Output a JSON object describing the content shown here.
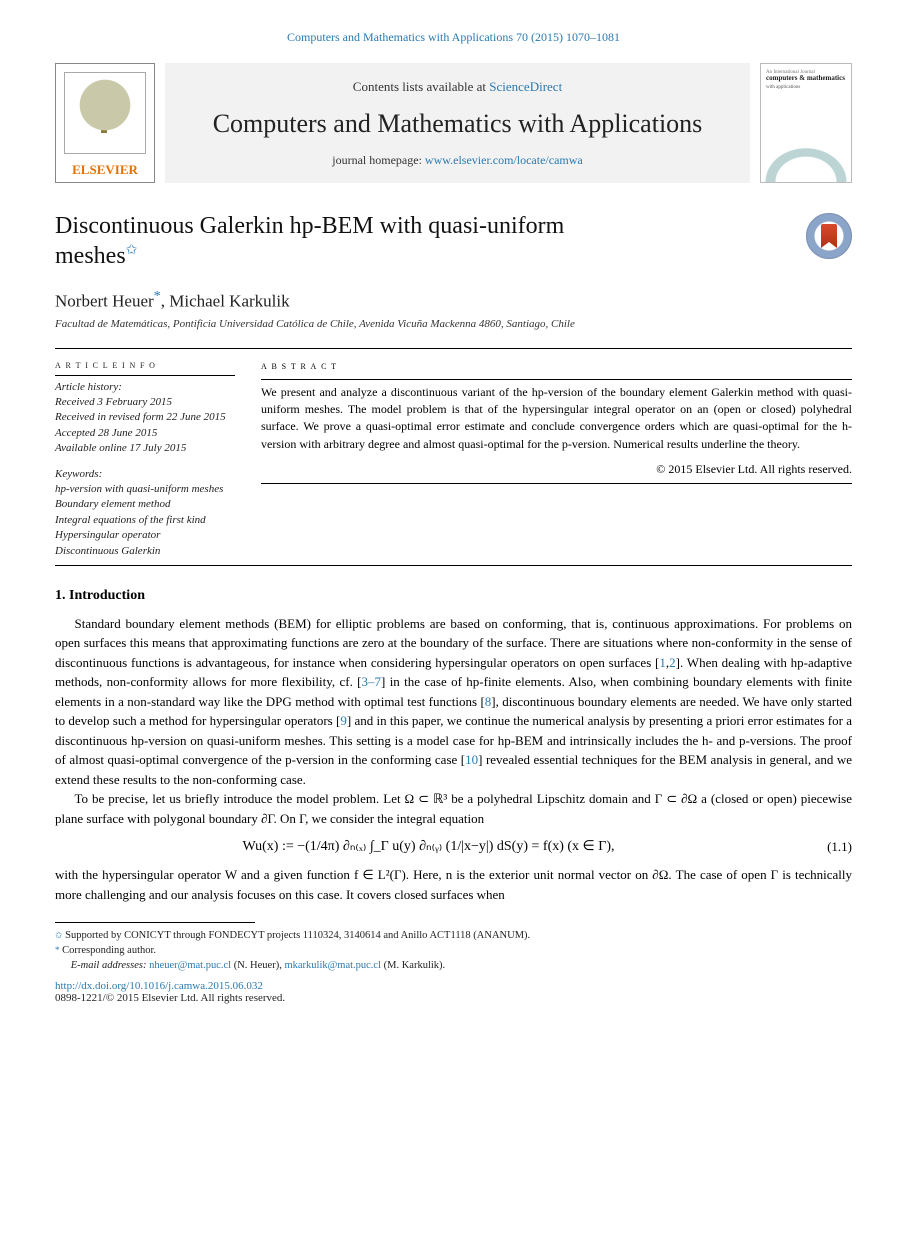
{
  "citation_header": "Computers and Mathematics with Applications 70 (2015) 1070–1081",
  "header": {
    "elsevier_label": "ELSEVIER",
    "contents_prefix": "Contents lists available at ",
    "sciencedirect": "ScienceDirect",
    "journal_name": "Computers and Mathematics with Applications",
    "homepage_prefix": "journal homepage: ",
    "homepage_url": "www.elsevier.com/locate/camwa",
    "cover_t1": "computers & mathematics",
    "cover_t2": "with applications"
  },
  "title_line1": "Discontinuous Galerkin hp-BEM with quasi-uniform",
  "title_line2": "meshes",
  "title_star": "✩",
  "authors": "Norbert Heuer",
  "author2_pre": ", Michael Karkulik",
  "corr_mark": "*",
  "affiliation": "Facultad de Matemáticas, Pontificia Universidad Católica de Chile, Avenida Vicuña Mackenna 4860, Santiago, Chile",
  "article_info": {
    "head": "a r t i c l e   i n f o",
    "history_head": "Article history:",
    "h1": "Received 3 February 2015",
    "h2": "Received in revised form 22 June 2015",
    "h3": "Accepted 28 June 2015",
    "h4": "Available online 17 July 2015",
    "kw_head": "Keywords:",
    "k1": "hp-version with quasi-uniform meshes",
    "k2": "Boundary element method",
    "k3": "Integral equations of the first kind",
    "k4": "Hypersingular operator",
    "k5": "Discontinuous Galerkin"
  },
  "abstract": {
    "head": "a b s t r a c t",
    "text": "We present and analyze a discontinuous variant of the hp-version of the boundary element Galerkin method with quasi-uniform meshes. The model problem is that of the hypersingular integral operator on an (open or closed) polyhedral surface. We prove a quasi-optimal error estimate and conclude convergence orders which are quasi-optimal for the h-version with arbitrary degree and almost quasi-optimal for the p-version. Numerical results underline the theory.",
    "copyright": "© 2015 Elsevier Ltd. All rights reserved."
  },
  "section1_head": "1. Introduction",
  "intro": {
    "p1_a": "Standard boundary element methods (BEM) for elliptic problems are based on conforming, that is, continuous approximations. For problems on open surfaces this means that approximating functions are zero at the boundary of the surface. There are situations where non-conformity in the sense of discontinuous functions is advantageous, for instance when considering hypersingular operators on open surfaces [",
    "c1": "1",
    "p1_b": ",",
    "c2": "2",
    "p1_c": "]. When dealing with hp-adaptive methods, non-conformity allows for more flexibility, cf. [",
    "c3": "3–7",
    "p1_d": "] in the case of hp-finite elements. Also, when combining boundary elements with finite elements in a non-standard way like the DPG method with optimal test functions [",
    "c4": "8",
    "p1_e": "], discontinuous boundary elements are needed. We have only started to develop such a method for hypersingular operators [",
    "c5": "9",
    "p1_f": "] and in this paper, we continue the numerical analysis by presenting a priori error estimates for a discontinuous hp-version on quasi-uniform meshes. This setting is a model case for hp-BEM and intrinsically includes the h- and p-versions. The proof of almost quasi-optimal convergence of the p-version in the conforming case [",
    "c6": "10",
    "p1_g": "] revealed essential techniques for the BEM analysis in general, and we extend these results to the non-conforming case.",
    "p2": "To be precise, let us briefly introduce the model problem. Let Ω ⊂ ℝ³ be a polyhedral Lipschitz domain and Γ ⊂ ∂Ω a (closed or open) piecewise plane surface with polygonal boundary ∂Γ. On Γ, we consider the integral equation",
    "eq1": "Wu(x) := −(1/4π) ∂ₙ₍ₓ₎ ∫_Γ u(y) ∂ₙ₍ᵧ₎ (1/|x−y|) dS(y) = f(x)    (x ∈ Γ),",
    "eqnum1": "(1.1)",
    "p3": "with the hypersingular operator W and a given function f ∈ L²(Γ). Here, n is the exterior unit normal vector on ∂Ω. The case of open Γ is technically more challenging and our analysis focuses on this case. It covers closed surfaces when"
  },
  "footnotes": {
    "f1_mark": "✩",
    "f1_text": " Supported by CONICYT through FONDECYT projects 1110324, 3140614 and Anillo ACT1118 (ANANUM).",
    "f2_mark": "*",
    "f2_text": " Corresponding author.",
    "emails_label": "E-mail addresses: ",
    "em1": "nheuer@mat.puc.cl",
    "em1_who": " (N. Heuer), ",
    "em2": "mkarkulik@mat.puc.cl",
    "em2_who": " (M. Karkulik)."
  },
  "doi": {
    "url": "http://dx.doi.org/10.1016/j.camwa.2015.06.032",
    "tail": "0898-1221/© 2015 Elsevier Ltd. All rights reserved."
  },
  "colors": {
    "link": "#2a7ab0",
    "elsevier_orange": "#e57200",
    "bg": "#ffffff",
    "header_box": "#f2f2f2"
  }
}
